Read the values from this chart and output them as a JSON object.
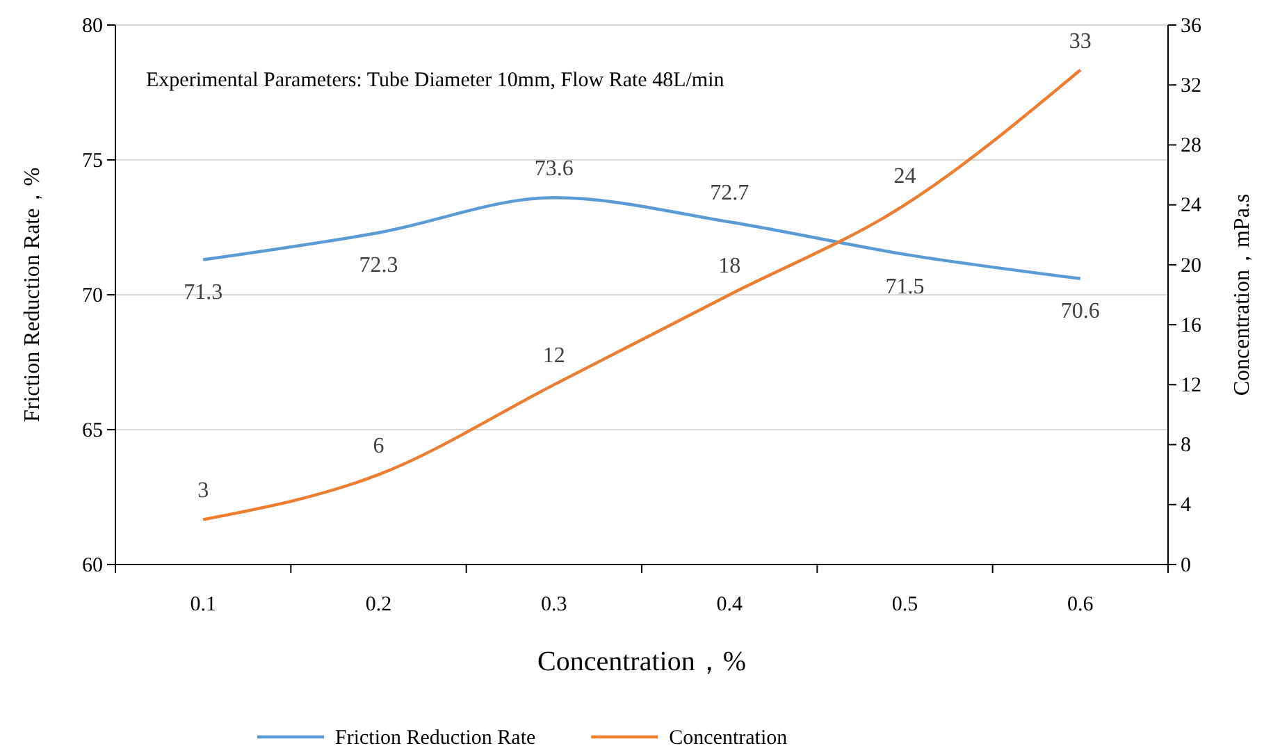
{
  "chart_data": {
    "type": "line",
    "categories": [
      "0.1",
      "0.2",
      "0.3",
      "0.4",
      "0.5",
      "0.6"
    ],
    "series": [
      {
        "name": "Friction Reduction Rate",
        "color": "#5b9bd5",
        "values": [
          71.3,
          72.3,
          73.6,
          72.7,
          71.5,
          70.6
        ]
      },
      {
        "name": "Concentration",
        "color": "#ed7d31",
        "axis": "y2",
        "values": [
          3,
          6,
          12,
          18,
          24,
          33
        ]
      }
    ],
    "xlabel": "Concentration，%",
    "ylabel": "Friction Reduction Rate，%",
    "y2label": "Concentration，mPa.s",
    "ylim": [
      60,
      80
    ],
    "yticks": [
      60,
      65,
      70,
      75,
      80
    ],
    "y2lim": [
      0,
      36
    ],
    "y2ticks": [
      0,
      4,
      8,
      12,
      16,
      20,
      24,
      28,
      32,
      36
    ],
    "annotations": [
      "Experimental Parameters: Tube Diameter 10mm, Flow Rate 48L/min"
    ],
    "grid": "y",
    "legend": "bottom",
    "data_labels": true,
    "marker": "none",
    "line_style": "solid"
  }
}
